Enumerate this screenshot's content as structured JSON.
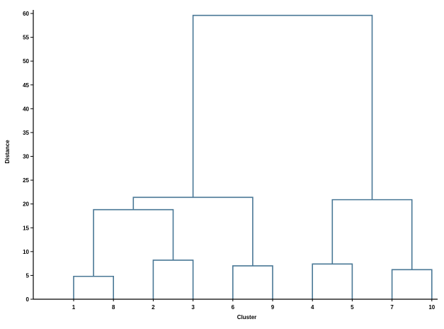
{
  "chart_data": {
    "type": "dendrogram",
    "xlabel": "Cluster",
    "ylabel": "Distance",
    "ylim": [
      0,
      60
    ],
    "yticks": [
      0,
      5,
      10,
      15,
      20,
      25,
      30,
      35,
      40,
      45,
      50,
      55,
      60
    ],
    "leaf_order": [
      "1",
      "8",
      "2",
      "3",
      "6",
      "9",
      "4",
      "5",
      "7",
      "10"
    ],
    "merges": [
      {
        "left": "1",
        "right": "8",
        "height": 4.8
      },
      {
        "left": "2",
        "right": "3",
        "height": 8.2
      },
      {
        "left": "6",
        "right": "9",
        "height": 7.0
      },
      {
        "left": "4",
        "right": "5",
        "height": 7.4
      },
      {
        "left": "7",
        "right": "10",
        "height": 6.2
      },
      {
        "left": "1-8",
        "right": "2-3",
        "height": 18.8
      },
      {
        "left": "1-8-2-3",
        "right": "6-9",
        "height": 21.4
      },
      {
        "left": "4-5",
        "right": "7-10",
        "height": 20.9
      },
      {
        "left": "1-8-2-3-6-9",
        "right": "4-5-7-10",
        "height": 59.6
      }
    ],
    "grid": false,
    "line_color": "#4a7896"
  }
}
